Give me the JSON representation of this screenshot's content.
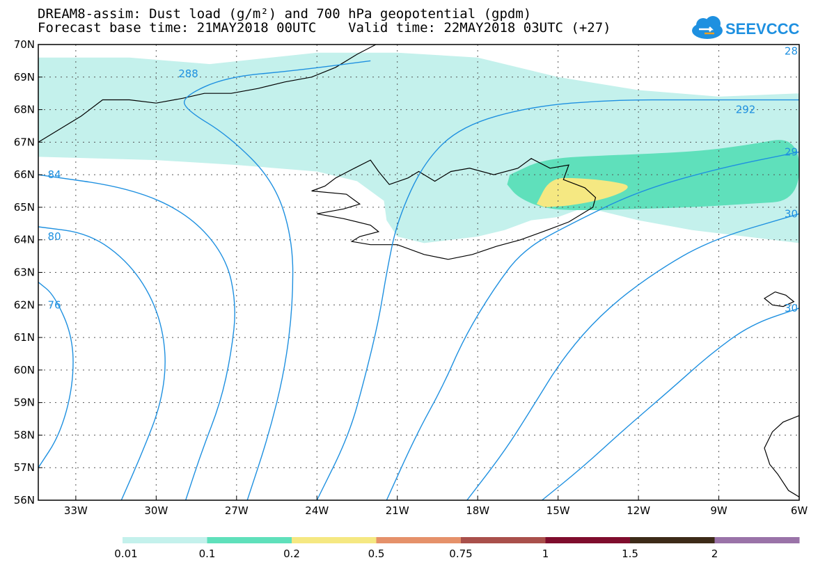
{
  "title_line1": "DREAM8-assim: Dust load (g/m²) and 700 hPa geopotential (gpdm)",
  "title_line2": "Forecast base time: 21MAY2018 00UTC    Valid time: 22MAY2018 03UTC (+27)",
  "logo_text": "SEEVCCC",
  "lat_labels": [
    "70N",
    "69N",
    "68N",
    "67N",
    "66N",
    "65N",
    "64N",
    "63N",
    "62N",
    "61N",
    "60N",
    "59N",
    "58N",
    "57N",
    "56N"
  ],
  "lon_labels": [
    "33W",
    "30W",
    "27W",
    "24W",
    "21W",
    "18W",
    "15W",
    "12W",
    "9W",
    "6W"
  ],
  "contour_labels": [
    {
      "text": "288",
      "lon": -28.8,
      "lat": 69.1
    },
    {
      "text": "28",
      "lon": -6.3,
      "lat": 69.8
    },
    {
      "text": "292",
      "lon": -8.0,
      "lat": 68.0
    },
    {
      "text": "29",
      "lon": -6.3,
      "lat": 66.7
    },
    {
      "text": "30",
      "lon": -6.3,
      "lat": 64.8
    },
    {
      "text": "30",
      "lon": -6.3,
      "lat": 61.9
    },
    {
      "text": "84",
      "lon": -33.8,
      "lat": 66.0
    },
    {
      "text": "80",
      "lon": -33.8,
      "lat": 64.1
    },
    {
      "text": "76",
      "lon": -33.8,
      "lat": 62.0
    }
  ],
  "colorbar": {
    "colors": [
      "#c4f1ec",
      "#5fe0bb",
      "#f5e882",
      "#e5916a",
      "#a9504b",
      "#7f0d2d",
      "#3d2b18",
      "#9a73a8"
    ],
    "labels": [
      "0.01",
      "0.1",
      "0.2",
      "0.5",
      "0.75",
      "1",
      "1.5",
      "2"
    ]
  },
  "colors": {
    "contour": "#1e90e0",
    "coast": "#000000",
    "grid": "#555555"
  }
}
